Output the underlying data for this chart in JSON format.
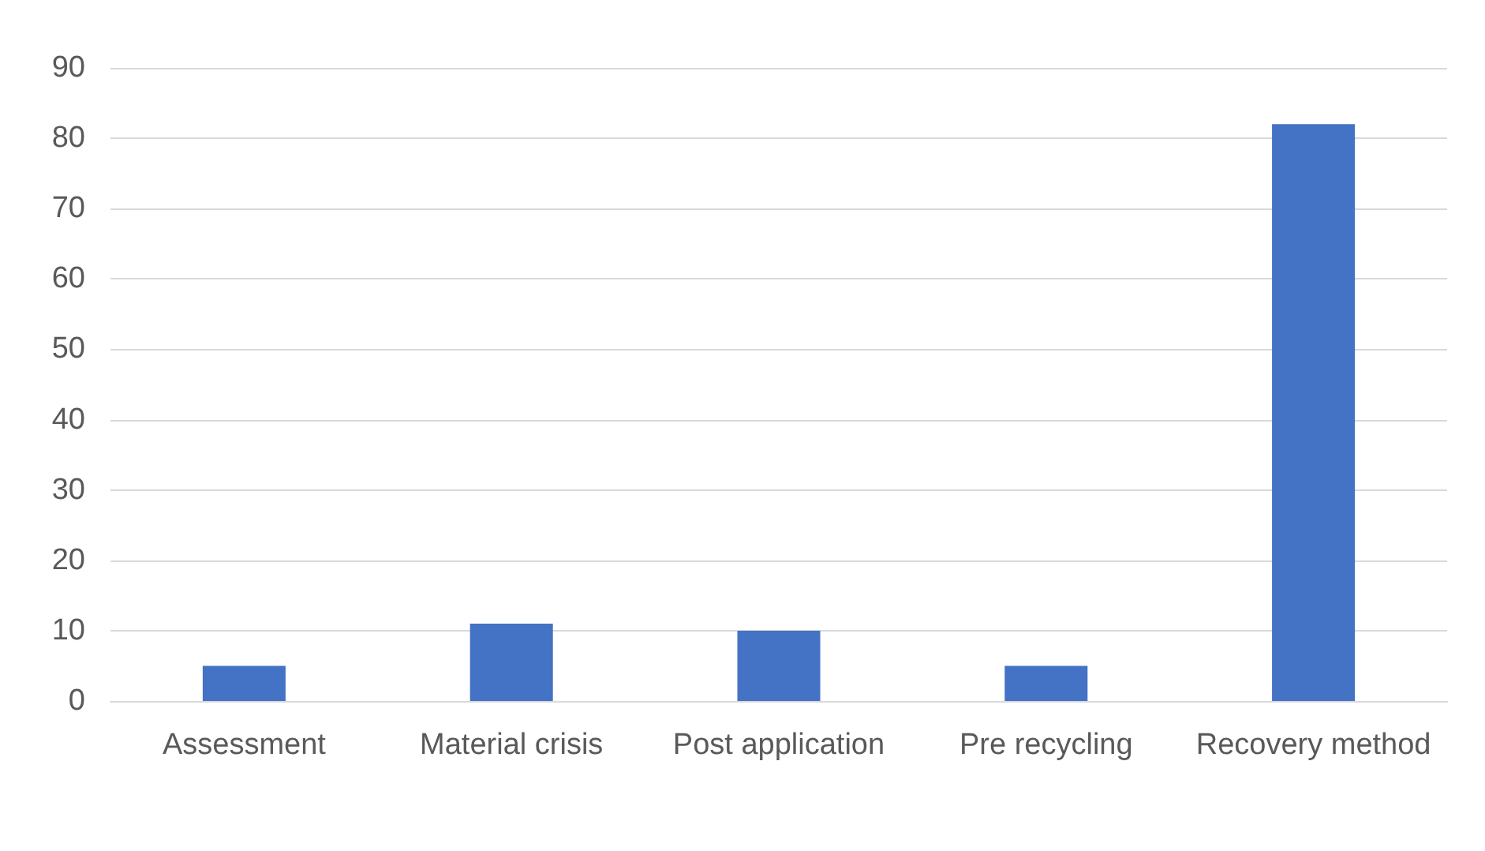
{
  "chart_data": {
    "type": "bar",
    "categories": [
      "Assessment",
      "Material crisis",
      "Post application",
      "Pre recycling",
      "Recovery method"
    ],
    "values": [
      5,
      11,
      10,
      5,
      82
    ],
    "color": "#4472c4",
    "ylim": [
      0,
      90
    ],
    "yticks": [
      0,
      10,
      20,
      30,
      40,
      50,
      60,
      70,
      80,
      90
    ],
    "grid": "y"
  }
}
